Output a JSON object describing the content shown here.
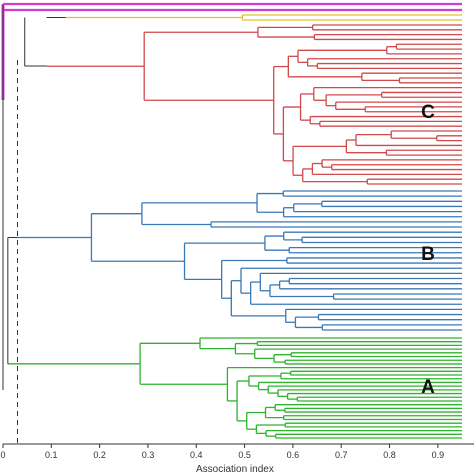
{
  "figure": {
    "type": "dendrogram",
    "xlabel": "Association index",
    "xticks": [
      "0",
      "0.1",
      "0.2",
      "0.3",
      "0.4",
      "0.5",
      "0.6",
      "0.7",
      "0.8",
      "0.9"
    ],
    "xlim": [
      0,
      0.95
    ],
    "cutoff_line": {
      "x": 0.03,
      "style": "dashed"
    }
  },
  "clusters": [
    {
      "name": "pink",
      "label": "",
      "color": "#D63BD1",
      "leaf_count": 2,
      "join_value": 0.0,
      "root_value": 0.0
    },
    {
      "name": "yellow",
      "label": "",
      "color": "#E8C026",
      "leaf_count": 2,
      "join_value": 0.13,
      "root_value": 0.13
    },
    {
      "name": "red",
      "label": "C",
      "color": "#D0494B",
      "leaf_count": 34,
      "join_value": 0.09,
      "root_value": 0.09
    },
    {
      "name": "blue",
      "label": "B",
      "color": "#3A78B6",
      "leaf_count": 28,
      "join_value": 0.03,
      "root_value": 0.03
    },
    {
      "name": "green",
      "label": "A",
      "color": "#2FB32E",
      "leaf_count": 28,
      "join_value": 0.01,
      "root_value": 0.01
    }
  ],
  "trunk_color": "#333333"
}
